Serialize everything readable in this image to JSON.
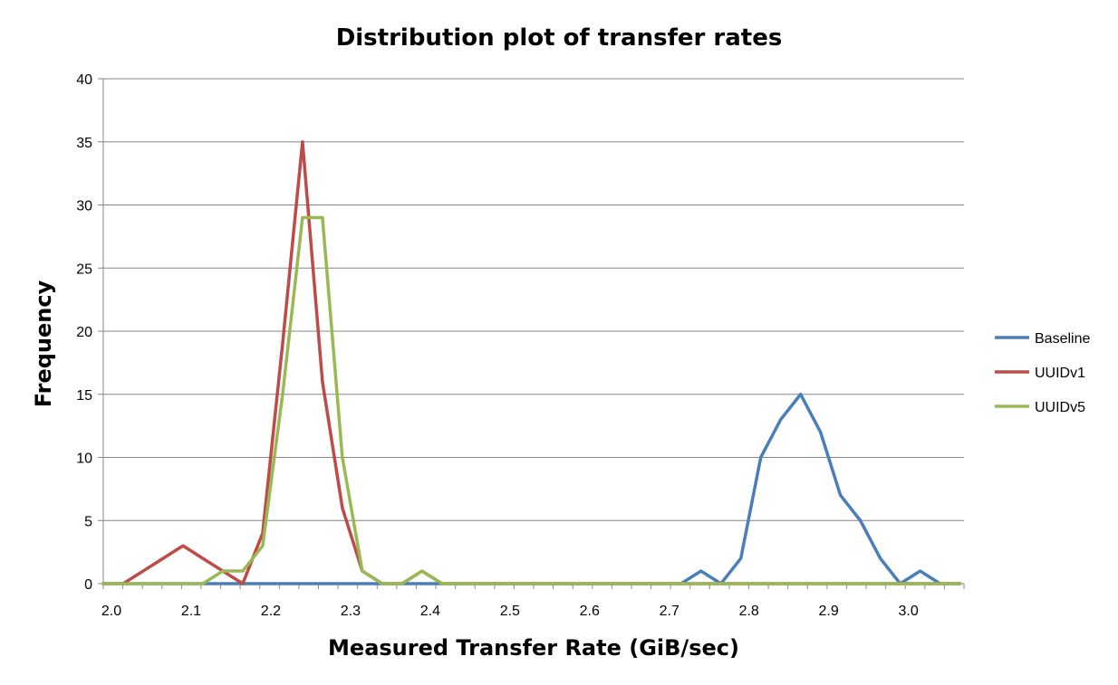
{
  "chart_data": {
    "type": "line",
    "title": "Distribution plot of transfer rates",
    "xlabel": "Measured Transfer Rate (GiB/sec)",
    "ylabel": "Frequency",
    "xlim": [
      2.0,
      3.08
    ],
    "ylim": [
      0,
      40
    ],
    "x_ticks": [
      "2.0",
      "2.1",
      "2.2",
      "2.3",
      "2.4",
      "2.5",
      "2.6",
      "2.7",
      "2.8",
      "2.9",
      "3.0"
    ],
    "y_ticks": [
      "0",
      "5",
      "10",
      "15",
      "20",
      "25",
      "30",
      "35",
      "40"
    ],
    "grid": "horizontal",
    "legend_position": "right",
    "x": [
      2.0,
      2.025,
      2.05,
      2.075,
      2.1,
      2.125,
      2.15,
      2.175,
      2.2,
      2.225,
      2.25,
      2.275,
      2.3,
      2.325,
      2.35,
      2.375,
      2.4,
      2.425,
      2.45,
      2.475,
      2.5,
      2.525,
      2.55,
      2.575,
      2.6,
      2.625,
      2.65,
      2.675,
      2.7,
      2.725,
      2.75,
      2.775,
      2.8,
      2.825,
      2.85,
      2.875,
      2.9,
      2.925,
      2.95,
      2.975,
      3.0,
      3.025,
      3.05,
      3.075
    ],
    "series": [
      {
        "name": "Baseline",
        "color": "#4a7ebb",
        "values": [
          0,
          0,
          0,
          0,
          0,
          0,
          0,
          0,
          0,
          0,
          0,
          0,
          0,
          0,
          0,
          0,
          0,
          0,
          0,
          0,
          0,
          0,
          0,
          0,
          0,
          0,
          0,
          0,
          0,
          0,
          1,
          0,
          2,
          10,
          13,
          15,
          12,
          7,
          5,
          2,
          0,
          1,
          0,
          0
        ]
      },
      {
        "name": "UUIDv1",
        "color": "#be4b48",
        "values": [
          0,
          0,
          1,
          2,
          3,
          2,
          1,
          0,
          4,
          19,
          35,
          16,
          6,
          1,
          0,
          0,
          1,
          0,
          0,
          0,
          0,
          0,
          0,
          0,
          0,
          0,
          0,
          0,
          0,
          0,
          0,
          0,
          0,
          0,
          0,
          0,
          0,
          0,
          0,
          0,
          0,
          0,
          0,
          0
        ]
      },
      {
        "name": "UUIDv5",
        "color": "#98b954",
        "values": [
          0,
          0,
          0,
          0,
          0,
          0,
          1,
          1,
          3,
          15,
          29,
          29,
          10,
          1,
          0,
          0,
          1,
          0,
          0,
          0,
          0,
          0,
          0,
          0,
          0,
          0,
          0,
          0,
          0,
          0,
          0,
          0,
          0,
          0,
          0,
          0,
          0,
          0,
          0,
          0,
          0,
          0,
          0,
          0
        ]
      }
    ]
  }
}
